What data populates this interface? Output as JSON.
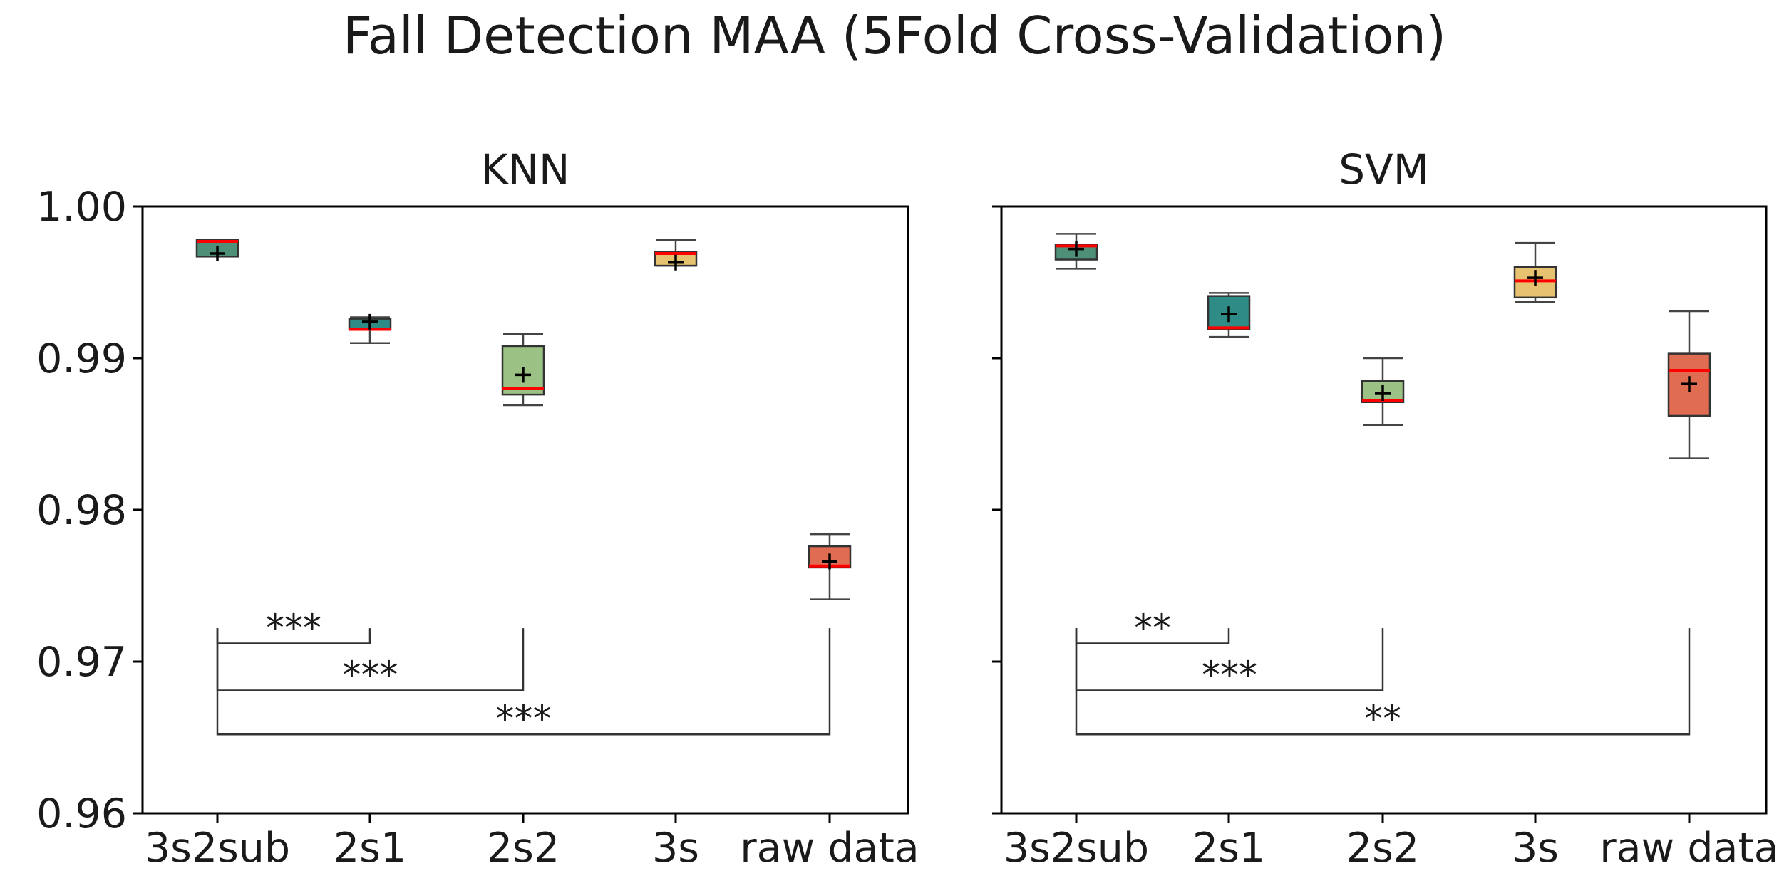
{
  "figure_title": "Fall Detection MAA (5Fold Cross-Validation)",
  "colors": {
    "3s2sub": "#4e8f78",
    "2s1": "#2f8b86",
    "2s2": "#9bc184",
    "3s": "#e6c170",
    "raw data": "#e06d52",
    "median": "#ff0000",
    "mean_marker": "#000000",
    "axes": "#000000"
  },
  "chart_data": [
    {
      "type": "box",
      "title": "KNN",
      "xlabel": "",
      "ylabel": "",
      "ylim": [
        0.96,
        1.0
      ],
      "yticks": [
        0.96,
        0.97,
        0.98,
        0.99,
        1.0
      ],
      "ytick_labels": [
        "0.96",
        "0.97",
        "0.98",
        "0.99",
        "1.00"
      ],
      "show_ytick_labels": true,
      "categories": [
        "3s2sub",
        "2s1",
        "2s2",
        "3s",
        "raw data"
      ],
      "boxes": [
        {
          "category": "3s2sub",
          "whisker_low": 0.9967,
          "q1": 0.9967,
          "median": 0.9977,
          "q3": 0.9978,
          "whisker_high": 0.9978,
          "mean": 0.9969
        },
        {
          "category": "2s1",
          "whisker_low": 0.991,
          "q1": 0.9919,
          "median": 0.9919,
          "q3": 0.9926,
          "whisker_high": 0.9927,
          "mean": 0.9924
        },
        {
          "category": "2s2",
          "whisker_low": 0.9869,
          "q1": 0.9876,
          "median": 0.988,
          "q3": 0.9908,
          "whisker_high": 0.9916,
          "mean": 0.9889
        },
        {
          "category": "3s",
          "whisker_low": 0.9961,
          "q1": 0.9961,
          "median": 0.9969,
          "q3": 0.997,
          "whisker_high": 0.9978,
          "mean": 0.9963
        },
        {
          "category": "raw data",
          "whisker_low": 0.9741,
          "q1": 0.9762,
          "median": 0.9763,
          "q3": 0.9776,
          "whisker_high": 0.9784,
          "mean": 0.9766
        }
      ],
      "significance": [
        {
          "from": "3s2sub",
          "to": "2s1",
          "label": "***",
          "y": 0.9712
        },
        {
          "from": "3s2sub",
          "to": "2s2",
          "label": "***",
          "y": 0.9681
        },
        {
          "from": "3s2sub",
          "to": "raw data",
          "label": "***",
          "y": 0.9652
        }
      ]
    },
    {
      "type": "box",
      "title": "SVM",
      "xlabel": "",
      "ylabel": "",
      "ylim": [
        0.96,
        1.0
      ],
      "yticks": [
        0.96,
        0.97,
        0.98,
        0.99,
        1.0
      ],
      "ytick_labels": [
        "",
        "",
        "",
        "",
        ""
      ],
      "show_ytick_labels": false,
      "categories": [
        "3s2sub",
        "2s1",
        "2s2",
        "3s",
        "raw data"
      ],
      "boxes": [
        {
          "category": "3s2sub",
          "whisker_low": 0.9959,
          "q1": 0.9965,
          "median": 0.9974,
          "q3": 0.9975,
          "whisker_high": 0.9982,
          "mean": 0.9972
        },
        {
          "category": "2s1",
          "whisker_low": 0.9914,
          "q1": 0.9919,
          "median": 0.992,
          "q3": 0.9941,
          "whisker_high": 0.9943,
          "mean": 0.9929
        },
        {
          "category": "2s2",
          "whisker_low": 0.9856,
          "q1": 0.9871,
          "median": 0.9872,
          "q3": 0.9885,
          "whisker_high": 0.99,
          "mean": 0.9877
        },
        {
          "category": "3s",
          "whisker_low": 0.9937,
          "q1": 0.994,
          "median": 0.9951,
          "q3": 0.996,
          "whisker_high": 0.9976,
          "mean": 0.9953
        },
        {
          "category": "raw data",
          "whisker_low": 0.9834,
          "q1": 0.9862,
          "median": 0.9892,
          "q3": 0.9903,
          "whisker_high": 0.9931,
          "mean": 0.9883
        }
      ],
      "significance": [
        {
          "from": "3s2sub",
          "to": "2s1",
          "label": "**",
          "y": 0.9712
        },
        {
          "from": "3s2sub",
          "to": "2s2",
          "label": "***",
          "y": 0.9681
        },
        {
          "from": "3s2sub",
          "to": "raw data",
          "label": "**",
          "y": 0.9652
        }
      ]
    }
  ]
}
